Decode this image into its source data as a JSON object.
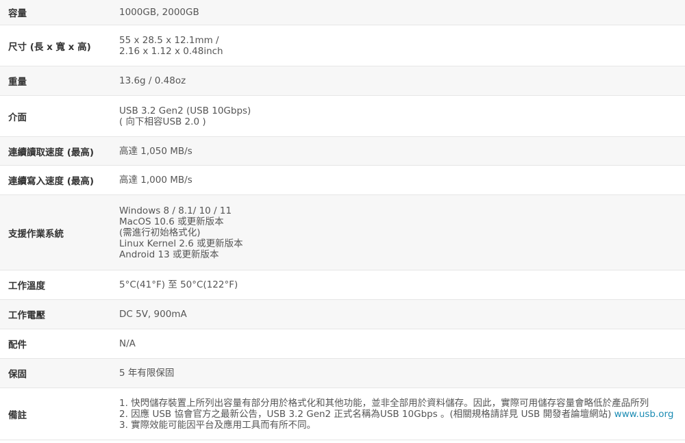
{
  "specs": [
    {
      "label": "容量",
      "lines": [
        "1000GB, 2000GB"
      ]
    },
    {
      "label": "尺寸 (長 x 寬 x 高)",
      "lines": [
        "55 x 28.5 x 12.1mm /",
        "2.16 x 1.12 x 0.48inch"
      ]
    },
    {
      "label": "重量",
      "lines": [
        "13.6g / 0.48oz"
      ]
    },
    {
      "label": "介面",
      "lines": [
        "USB 3.2 Gen2 (USB 10Gbps)",
        "( 向下相容USB 2.0 )"
      ]
    },
    {
      "label": "連續讀取速度 (最高)",
      "lines": [
        "高達 1,050 MB/s"
      ]
    },
    {
      "label": "連續寫入速度 (最高)",
      "lines": [
        "高達 1,000 MB/s"
      ]
    },
    {
      "label": "支援作業系統",
      "lines": [
        "Windows 8 / 8.1/ 10 / 11",
        "MacOS 10.6 或更新版本",
        "(需進行初始格式化)",
        "Linux Kernel 2.6 或更新版本",
        "Android 13 或更新版本"
      ]
    },
    {
      "label": "工作溫度",
      "lines": [
        "5°C(41°F) 至 50°C(122°F)"
      ]
    },
    {
      "label": "工作電壓",
      "lines": [
        "DC 5V, 900mA"
      ]
    },
    {
      "label": "配件",
      "lines": [
        "N/A"
      ]
    },
    {
      "label": "保固",
      "lines": [
        "5 年有限保固"
      ]
    },
    {
      "label": "備註",
      "lines": [
        "1. 快閃儲存裝置上所列出容量有部分用於格式化和其他功能，並非全部用於資料儲存。因此，實際可用儲存容量會略低於產品所列",
        "2. 因應 USB 協會官方之最新公告，USB 3.2 Gen2 正式名稱為USB 10Gbps 。(相關規格請詳見 USB 開發者論壇網站) ",
        "3. 實際效能可能因平台及應用工具而有所不同。"
      ],
      "link": "www.usb.org"
    }
  ]
}
